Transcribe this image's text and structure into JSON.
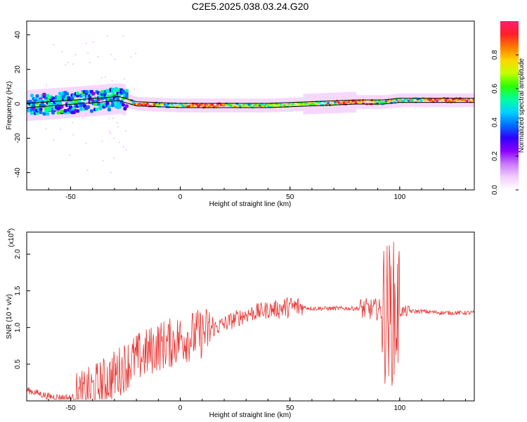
{
  "title": "C2E5.2025.038.03.24.G20",
  "colors": {
    "snr_line": "#e8322f",
    "band": "#000000",
    "colormap": [
      "#ffffff",
      "#f2ccff",
      "#c97aff",
      "#8a00ff",
      "#2e00ff",
      "#0070ff",
      "#00d2ff",
      "#00ff9c",
      "#2bff00",
      "#c4ff00",
      "#ffd400",
      "#ff7a00",
      "#ff1e28",
      "#ff1e6e"
    ]
  },
  "chart_data": [
    {
      "type": "heatmap",
      "xlabel": "Height of straight line (km)",
      "ylabel": "Frequency (Hz)",
      "xlim": [
        -70,
        134
      ],
      "ylim": [
        -50,
        48
      ],
      "xticks": [
        -50,
        0,
        50,
        100
      ],
      "yticks": [
        -40,
        -20,
        0,
        20,
        40
      ],
      "centerline_points": [
        [
          -70,
          -1
        ],
        [
          -48,
          1
        ],
        [
          -28,
          3
        ],
        [
          -20,
          0
        ],
        [
          0,
          -1
        ],
        [
          20,
          -1
        ],
        [
          40,
          -1
        ],
        [
          60,
          0
        ],
        [
          80,
          1
        ],
        [
          92,
          1
        ],
        [
          100,
          2
        ],
        [
          134,
          2
        ]
      ],
      "colorbar": {
        "label": "Normalized spectral amplitude",
        "range": [
          0,
          1
        ],
        "ticks": [
          "0.0",
          "0.2",
          "0.4",
          "0.6",
          "0.8"
        ],
        "tick_values": [
          0.0,
          0.2,
          0.4,
          0.6,
          0.8
        ]
      }
    },
    {
      "type": "line",
      "xlabel": "Height of straight line (km)",
      "ylabel": "SNR (10 * v/v)",
      "y_scale_note": "(x10",
      "y_scale_exp": "4",
      "y_scale_tail": ")",
      "xlim": [
        -70,
        134
      ],
      "ylim": [
        0,
        2.3
      ],
      "xticks": [
        -50,
        0,
        50,
        100
      ],
      "yticks": [
        "0.5",
        "1.0",
        "1.5",
        "2.0"
      ],
      "ytick_values": [
        0.5,
        1.0,
        1.5,
        2.0
      ],
      "series": [
        {
          "values_envelope": {
            "x": [
              -70,
              -60,
              -50,
              -45,
              -40,
              -35,
              -30,
              -25,
              -20,
              -15,
              -10,
              -5,
              0,
              5,
              10,
              20,
              30,
              40,
              50,
              55,
              60,
              70,
              80,
              85,
              90,
              95,
              98,
              100,
              110,
              120,
              134
            ],
            "y": [
              0.15,
              0.06,
              0.04,
              0.06,
              0.15,
              0.25,
              0.35,
              0.48,
              0.58,
              0.65,
              0.75,
              0.78,
              0.85,
              0.88,
              0.92,
              1.05,
              1.18,
              1.24,
              1.28,
              1.28,
              1.26,
              1.26,
              1.26,
              1.25,
              1.25,
              1.2,
              1.2,
              1.22,
              1.22,
              1.2,
              1.2
            ]
          }
        }
      ]
    }
  ]
}
